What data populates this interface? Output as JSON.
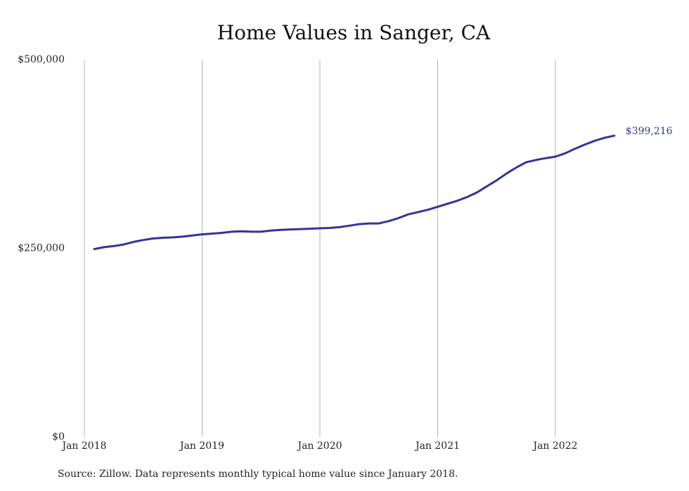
{
  "title": "Home Values in Sanger, CA",
  "source": "Source: Zillow. Data represents monthly typical home value since January 2018.",
  "colors": {
    "line": "#33339a",
    "grid": "#b5b5b5",
    "text": "#222222"
  },
  "chart_data": {
    "type": "line",
    "title": "Home Values in Sanger, CA",
    "xlabel": "",
    "ylabel": "",
    "grid": "vertical",
    "ylim": [
      0,
      500000
    ],
    "y_ticks": [
      {
        "value": 0,
        "label": "$0"
      },
      {
        "value": 250000,
        "label": "$250,000"
      },
      {
        "value": 500000,
        "label": "$500,000"
      }
    ],
    "x_ticks": [
      {
        "value": "2018-01",
        "label": "Jan 2018"
      },
      {
        "value": "2019-01",
        "label": "Jan 2019"
      },
      {
        "value": "2020-01",
        "label": "Jan 2020"
      },
      {
        "value": "2021-01",
        "label": "Jan 2021"
      },
      {
        "value": "2022-01",
        "label": "Jan 2022"
      }
    ],
    "end_label": "$399,216",
    "series": [
      {
        "x": [
          "2018-02",
          "2018-03",
          "2018-04",
          "2018-05",
          "2018-06",
          "2018-07",
          "2018-08",
          "2018-09",
          "2018-10",
          "2018-11",
          "2018-12",
          "2019-01",
          "2019-02",
          "2019-03",
          "2019-04",
          "2019-05",
          "2019-06",
          "2019-07",
          "2019-08",
          "2019-09",
          "2019-10",
          "2019-11",
          "2019-12",
          "2020-01",
          "2020-02",
          "2020-03",
          "2020-04",
          "2020-05",
          "2020-06",
          "2020-07",
          "2020-08",
          "2020-09",
          "2020-10",
          "2020-11",
          "2020-12",
          "2021-01",
          "2021-02",
          "2021-03",
          "2021-04",
          "2021-05",
          "2021-06",
          "2021-07",
          "2021-08",
          "2021-09",
          "2021-10",
          "2021-11",
          "2021-12",
          "2022-01",
          "2022-02",
          "2022-03",
          "2022-04",
          "2022-05",
          "2022-06",
          "2022-07"
        ],
        "values": [
          249000,
          251500,
          253000,
          255000,
          258500,
          261000,
          263000,
          264000,
          264500,
          265500,
          267000,
          268500,
          269500,
          270500,
          272000,
          272500,
          272000,
          272000,
          273500,
          274500,
          275000,
          275500,
          276000,
          276500,
          277000,
          278000,
          280000,
          282000,
          283000,
          283000,
          286000,
          290000,
          295000,
          298000,
          301000,
          305000,
          309000,
          313000,
          318000,
          324000,
          332000,
          340000,
          349000,
          357000,
          364000,
          367000,
          369500,
          371500,
          376000,
          382000,
          387500,
          392500,
          396500,
          399216
        ]
      }
    ]
  }
}
